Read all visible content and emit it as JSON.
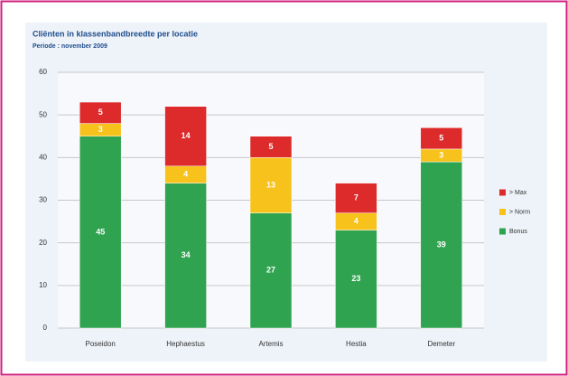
{
  "chart_data": {
    "type": "stacked_bar",
    "title": "Cliënten in klassenbandbreedte per locatie",
    "subtitle": "Periode : november 2009",
    "categories": [
      "Poseidon",
      "Hephaestus",
      "Artemis",
      "Hestia",
      "Demeter"
    ],
    "series": [
      {
        "name": "Bonus",
        "color": "#2fa34f",
        "values": [
          45,
          34,
          27,
          23,
          39
        ]
      },
      {
        "name": "> Norm",
        "color": "#f7c21b",
        "values": [
          3,
          4,
          13,
          4,
          3
        ]
      },
      {
        "name": "> Max",
        "color": "#dd2a2a",
        "values": [
          5,
          14,
          5,
          7,
          5
        ]
      }
    ],
    "ylim": [
      0,
      60
    ],
    "yticks": [
      0,
      10,
      20,
      30,
      40,
      50,
      60
    ],
    "grid": true,
    "legend": "right"
  }
}
